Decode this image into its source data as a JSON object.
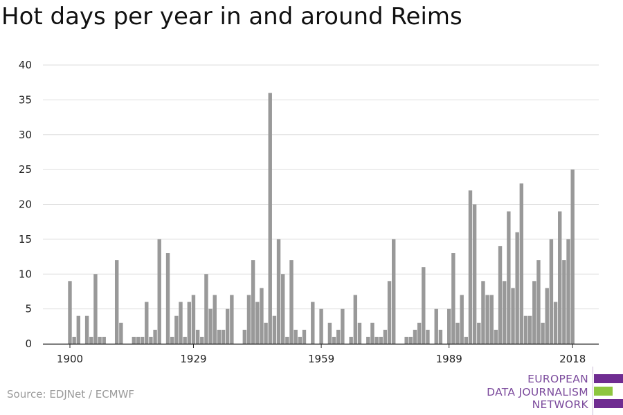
{
  "title": "Hot days per year in and around Reims",
  "source": "Source: EDJNet / ECMWF",
  "logo": {
    "lines": [
      "EUROPEAN",
      "DATA JOURNALISM",
      "NETWORK"
    ],
    "colors": {
      "purple": "#6f2c91",
      "green": "#8dc63f"
    }
  },
  "colors": {
    "bar": "#999999",
    "grid": "#dddddd",
    "axis": "#222222"
  },
  "chart_data": {
    "type": "bar",
    "title": "Hot days per year in and around Reims",
    "xlabel": "",
    "ylabel": "",
    "ylim": [
      0,
      40
    ],
    "yticks": [
      0,
      5,
      10,
      15,
      20,
      25,
      30,
      35,
      40
    ],
    "xticks": [
      1900,
      1929,
      1959,
      1989,
      2018
    ],
    "grid": true,
    "series": [
      {
        "x": [
          1900,
          1901,
          1902,
          1903,
          1904,
          1905,
          1906,
          1907,
          1908,
          1909,
          1910,
          1911,
          1912,
          1913,
          1914,
          1915,
          1916,
          1917,
          1918,
          1919,
          1920,
          1921,
          1922,
          1923,
          1924,
          1925,
          1926,
          1927,
          1928,
          1929,
          1930,
          1931,
          1932,
          1933,
          1934,
          1935,
          1936,
          1937,
          1938,
          1939,
          1940,
          1941,
          1942,
          1943,
          1944,
          1945,
          1946,
          1947,
          1948,
          1949,
          1950,
          1951,
          1952,
          1953,
          1954,
          1955,
          1956,
          1957,
          1958,
          1959,
          1960,
          1961,
          1962,
          1963,
          1964,
          1965,
          1966,
          1967,
          1968,
          1969,
          1970,
          1971,
          1972,
          1973,
          1974,
          1975,
          1976,
          1977,
          1978,
          1979,
          1980,
          1981,
          1982,
          1983,
          1984,
          1985,
          1986,
          1987,
          1988,
          1989,
          1990,
          1991,
          1992,
          1993,
          1994,
          1995,
          1996,
          1997,
          1998,
          1999,
          2000,
          2001,
          2002,
          2003,
          2004,
          2005,
          2006,
          2007,
          2008,
          2009,
          2010,
          2011,
          2012,
          2013,
          2014,
          2015,
          2016,
          2017,
          2018
        ],
        "values": [
          9,
          1,
          4,
          0,
          4,
          1,
          10,
          1,
          1,
          0,
          0,
          12,
          3,
          0,
          0,
          1,
          1,
          1,
          6,
          1,
          2,
          15,
          0,
          13,
          1,
          4,
          6,
          1,
          6,
          7,
          2,
          1,
          10,
          5,
          7,
          2,
          2,
          5,
          7,
          0,
          0,
          2,
          7,
          12,
          6,
          8,
          3,
          36,
          4,
          15,
          10,
          1,
          12,
          2,
          1,
          2,
          0,
          6,
          0,
          5,
          0,
          3,
          1,
          2,
          5,
          0,
          1,
          7,
          3,
          0,
          1,
          3,
          1,
          1,
          2,
          9,
          15,
          0,
          0,
          1,
          1,
          2,
          3,
          11,
          2,
          0,
          5,
          2,
          0,
          5,
          13,
          3,
          7,
          1,
          22,
          20,
          3,
          9,
          7,
          7,
          2,
          14,
          9,
          19,
          8,
          16,
          23,
          4,
          4,
          9,
          12,
          3,
          8,
          15,
          6,
          19,
          12,
          15,
          25
        ]
      }
    ]
  }
}
